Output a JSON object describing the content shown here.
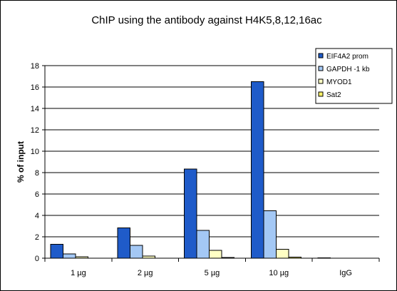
{
  "chart_data": {
    "type": "bar",
    "title": "ChIP using the antibody against H4K5,8,12,16ac",
    "xlabel": "",
    "ylabel": "% of input",
    "ylim": [
      0,
      18
    ],
    "yticks": [
      "0",
      "2",
      "4",
      "6",
      "8",
      "10",
      "12",
      "14",
      "16",
      "18"
    ],
    "grid": true,
    "legend_position": "top-right",
    "categories": [
      "1 µg",
      "2 µg",
      "5 µg",
      "10 µg",
      "IgG"
    ],
    "series": [
      {
        "name": "EIF4A2 prom",
        "color": "#1f5bc9",
        "values": [
          1.3,
          2.85,
          8.35,
          16.5,
          0.05
        ]
      },
      {
        "name": "GAPDH -1 kb",
        "color": "#a4c8f5",
        "values": [
          0.4,
          1.2,
          2.6,
          4.45,
          0.0
        ]
      },
      {
        "name": "MYOD1",
        "color": "#ffffc4",
        "values": [
          0.12,
          0.2,
          0.75,
          0.85,
          0.0
        ]
      },
      {
        "name": "Sat2",
        "color": "#f7ef66",
        "values": [
          0.0,
          0.0,
          0.07,
          0.1,
          0.0
        ]
      }
    ]
  }
}
